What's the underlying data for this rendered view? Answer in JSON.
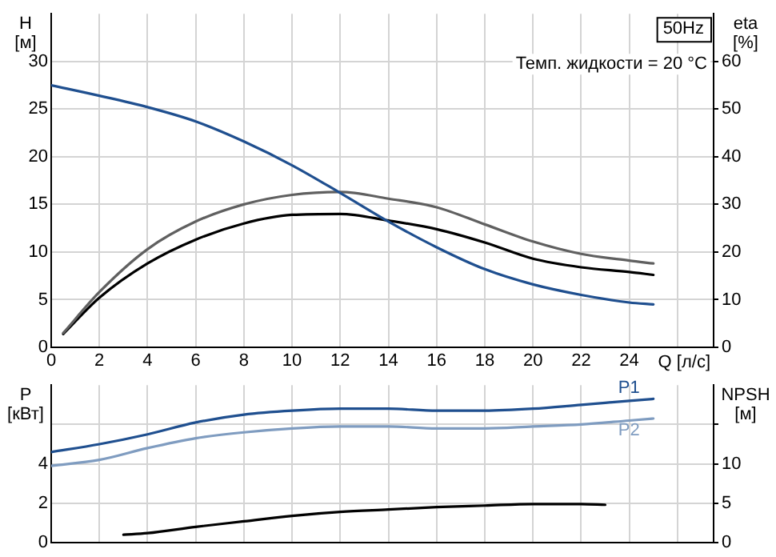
{
  "chart_data": [
    {
      "type": "line",
      "title": "50Hz",
      "annotations": [
        "Темп. жидкости = 20 °C"
      ],
      "xlabel": "Q [л/с]",
      "ylabel": "H [м]",
      "y2label": "eta [%]",
      "xlim": [
        0,
        27.5
      ],
      "xticks": [
        0,
        2,
        4,
        6,
        8,
        10,
        12,
        14,
        16,
        18,
        20,
        22,
        24,
        {
          "value": 26,
          "label": null
        }
      ],
      "ylim": [
        0,
        35
      ],
      "yticks": [
        0,
        5,
        10,
        15,
        20,
        25,
        30
      ],
      "y2lim": [
        0,
        70
      ],
      "y2ticks": [
        0,
        10,
        20,
        30,
        40,
        50,
        60
      ],
      "grid": true,
      "legend": false,
      "marker": "none",
      "line_style": "solid",
      "series": [
        {
          "color": "#1f4f8f",
          "x": [
            0,
            2,
            4,
            6,
            8,
            10,
            12,
            14,
            16,
            18,
            20,
            22,
            24,
            25
          ],
          "values": [
            27.5,
            26.4,
            25.2,
            23.7,
            21.6,
            19.1,
            16.2,
            13.2,
            10.5,
            8.2,
            6.6,
            5.5,
            4.7,
            4.5
          ]
        },
        {
          "color": "#606060",
          "axis": "y2",
          "x": [
            0.5,
            2,
            4,
            6,
            8,
            10,
            12,
            14,
            16,
            18,
            20,
            22,
            24,
            25
          ],
          "values": [
            3,
            11.6,
            20.6,
            26.4,
            30,
            32,
            32.6,
            31.2,
            29.4,
            25.8,
            22.2,
            19.6,
            18.2,
            17.6
          ]
        },
        {
          "color": "#000000",
          "axis": "y2",
          "x": [
            0.5,
            2,
            4,
            6,
            8,
            10,
            12,
            14,
            16,
            18,
            20,
            22,
            24,
            25
          ],
          "values": [
            2.8,
            10.4,
            17.6,
            22.6,
            26,
            27.8,
            28,
            26.6,
            24.8,
            22,
            18.6,
            16.8,
            15.8,
            15.2
          ]
        }
      ]
    },
    {
      "type": "line",
      "ylabel": "P [кВт]",
      "y2label": "NPSH [м]",
      "tick_labels": "y",
      "xlim": [
        0,
        27.5
      ],
      "xticks": [
        0,
        2,
        4,
        6,
        8,
        10,
        12,
        14,
        16,
        18,
        20,
        22,
        24,
        26
      ],
      "ylim": [
        0,
        8
      ],
      "yticks": [
        0,
        2,
        4,
        {
          "value": 6,
          "label": null
        }
      ],
      "y2lim": [
        0,
        20
      ],
      "y2ticks": [
        0,
        5,
        10,
        {
          "value": 15,
          "label": null
        }
      ],
      "grid": true,
      "legend": false,
      "marker": "none",
      "line_style": "solid",
      "series": [
        {
          "name": "P1",
          "color": "#1f4f8f",
          "x": [
            0,
            2,
            4,
            6,
            8,
            10,
            12,
            14,
            16,
            18,
            20,
            22,
            24,
            25
          ],
          "values": [
            4.6,
            5.0,
            5.5,
            6.1,
            6.5,
            6.7,
            6.8,
            6.8,
            6.7,
            6.7,
            6.8,
            7.0,
            7.2,
            7.3
          ]
        },
        {
          "name": "P2",
          "color": "#7f9cc0",
          "x": [
            0,
            2,
            4,
            6,
            8,
            10,
            12,
            14,
            16,
            18,
            20,
            22,
            24,
            25
          ],
          "values": [
            3.9,
            4.2,
            4.8,
            5.3,
            5.6,
            5.8,
            5.9,
            5.9,
            5.8,
            5.8,
            5.9,
            6.0,
            6.2,
            6.3
          ]
        },
        {
          "color": "#000000",
          "axis": "y2",
          "x": [
            3,
            4,
            6,
            8,
            10,
            12,
            14,
            16,
            18,
            20,
            22,
            23
          ],
          "values": [
            1.0,
            1.2,
            2.0,
            2.7,
            3.4,
            3.9,
            4.2,
            4.5,
            4.7,
            4.9,
            4.9,
            4.8
          ]
        }
      ]
    }
  ]
}
